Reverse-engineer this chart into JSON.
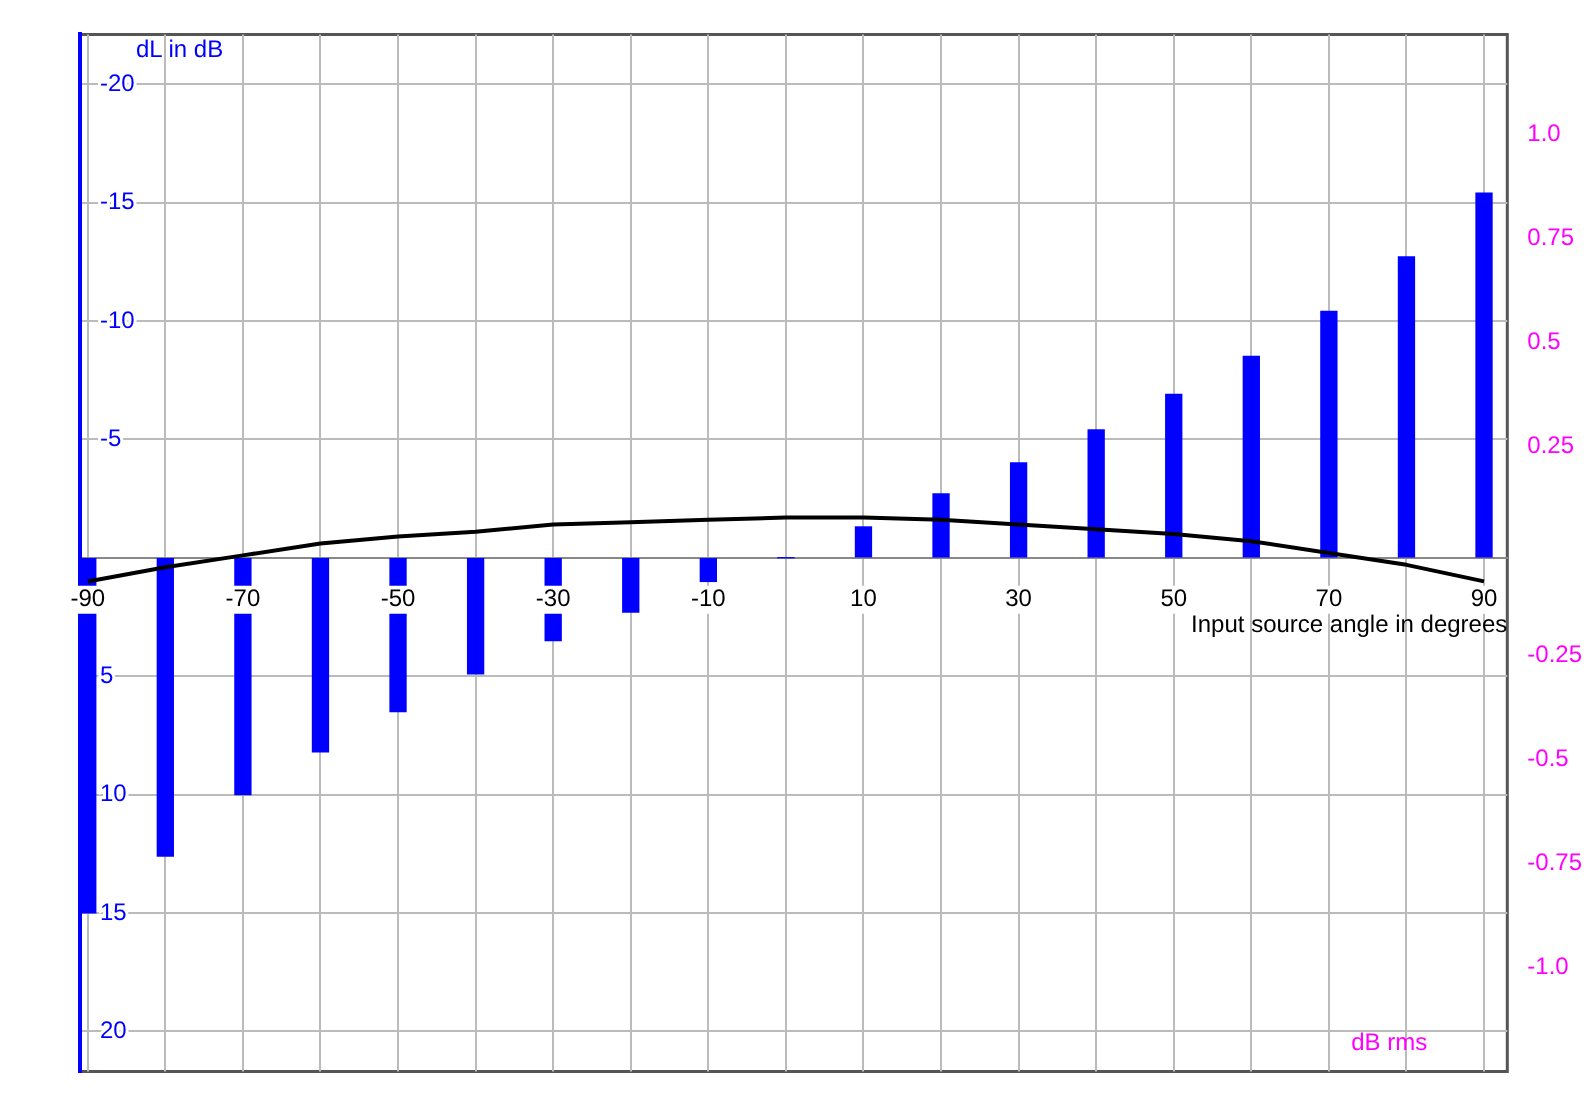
{
  "chart_data": {
    "type": "bar",
    "xlabel": "Input source angle in degrees",
    "ylabel": "dL in dB",
    "y2label": "dB rms",
    "x": [
      -90,
      -80,
      -70,
      -60,
      -50,
      -40,
      -30,
      -20,
      -10,
      0,
      10,
      20,
      30,
      40,
      50,
      60,
      70,
      80,
      90
    ],
    "series": [
      {
        "color": "#0000ff",
        "values": [
          15,
          12.6,
          10,
          8.2,
          6.5,
          4.9,
          3.5,
          2.3,
          1,
          0,
          -1.3,
          -2.7,
          -4,
          -5.4,
          -6.9,
          -8.5,
          -10.4,
          -12.7,
          -15.4
        ]
      },
      {
        "type": "line",
        "color": "#000000",
        "values": [
          1,
          0.4,
          -0.1,
          -0.6,
          -0.9,
          -1.1,
          -1.4,
          -1.5,
          -1.6,
          -1.7,
          -1.7,
          -1.6,
          -1.4,
          -1.2,
          -1,
          -0.7,
          -0.2,
          0.3,
          1
        ]
      }
    ],
    "xlim": [
      -91,
      93
    ],
    "xticks": [
      {
        "value": -90,
        "label": "-90"
      },
      {
        "value": -80,
        "label": null
      },
      {
        "value": -70,
        "label": "-70"
      },
      {
        "value": -60,
        "label": null
      },
      {
        "value": -50,
        "label": "-50"
      },
      {
        "value": -40,
        "label": null
      },
      {
        "value": -30,
        "label": "-30"
      },
      {
        "value": -20,
        "label": null
      },
      {
        "value": -10,
        "label": "-10"
      },
      {
        "value": 0,
        "label": null
      },
      {
        "value": 10,
        "label": "10"
      },
      {
        "value": 20,
        "label": null
      },
      {
        "value": 30,
        "label": "30"
      },
      {
        "value": 40,
        "label": null
      },
      {
        "value": 50,
        "label": "50"
      },
      {
        "value": 60,
        "label": null
      },
      {
        "value": 70,
        "label": "70"
      },
      {
        "value": 80,
        "label": null
      },
      {
        "value": 90,
        "label": "90"
      }
    ],
    "ylim": [
      21.7,
      -22.1
    ],
    "yticks": [
      -20,
      -15,
      -10,
      -5,
      {
        "value": 0,
        "label": null
      },
      5,
      10,
      15,
      20
    ],
    "y2lim": [
      -1.25,
      1.24
    ],
    "y2ticks": [
      {
        "value": 1,
        "label": "1.0"
      },
      0.75,
      0.5,
      0.25,
      -0.25,
      -0.5,
      -0.75,
      {
        "value": -1,
        "label": "-1.0"
      }
    ],
    "grid": true,
    "legend": false,
    "marker": "none",
    "line_style": "solid"
  }
}
